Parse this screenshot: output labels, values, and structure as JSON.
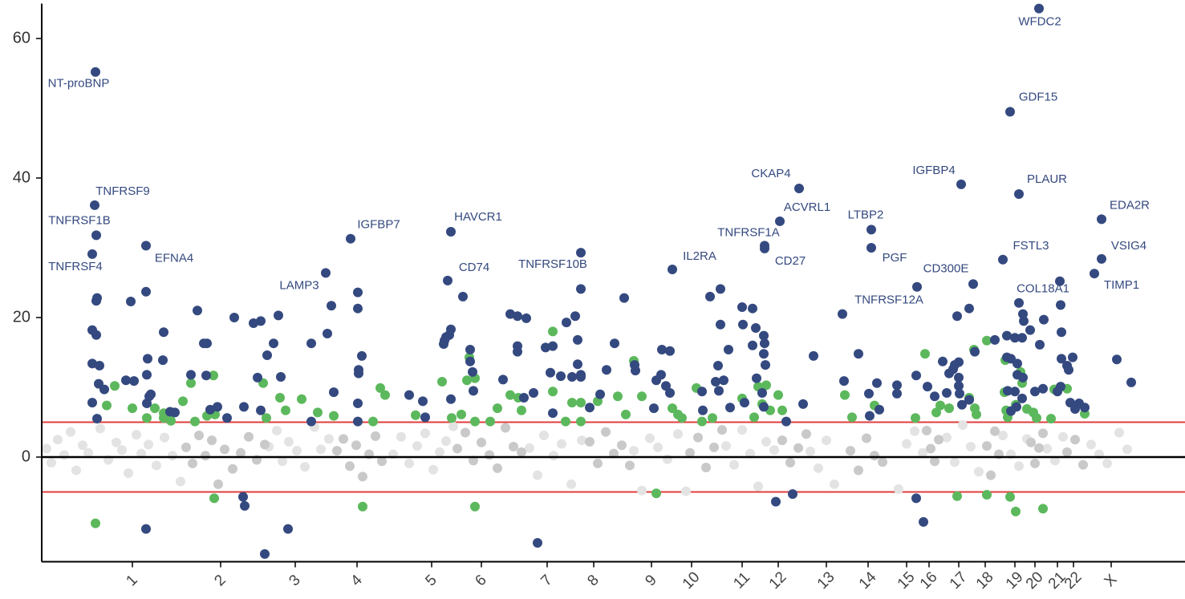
{
  "chart_data": {
    "type": "scatter",
    "xlim": [
      52,
      1477
    ],
    "ylim": [
      -15,
      65
    ],
    "yticks": [
      0,
      20,
      40,
      60
    ],
    "xticks": [
      {
        "value": 165,
        "label": "1"
      },
      {
        "value": 275,
        "label": "2"
      },
      {
        "value": 368,
        "label": "3"
      },
      {
        "value": 445,
        "label": "4"
      },
      {
        "value": 538,
        "label": "5"
      },
      {
        "value": 600,
        "label": "6"
      },
      {
        "value": 682,
        "label": "7"
      },
      {
        "value": 740,
        "label": "8"
      },
      {
        "value": 812,
        "label": "9"
      },
      {
        "value": 862,
        "label": "10"
      },
      {
        "value": 925,
        "label": "11"
      },
      {
        "value": 970,
        "label": "12"
      },
      {
        "value": 1030,
        "label": "13"
      },
      {
        "value": 1082,
        "label": "14"
      },
      {
        "value": 1130,
        "label": "15"
      },
      {
        "value": 1158,
        "label": "16"
      },
      {
        "value": 1195,
        "label": "17"
      },
      {
        "value": 1228,
        "label": "18"
      },
      {
        "value": 1265,
        "label": "19"
      },
      {
        "value": 1290,
        "label": "20"
      },
      {
        "value": 1318,
        "label": "21"
      },
      {
        "value": 1338,
        "label": "22"
      },
      {
        "value": 1385,
        "label": "X"
      }
    ],
    "threshold_lines": [
      5,
      -5
    ],
    "threshold_color": "#e03c3c",
    "zero_line": 0,
    "grid": false,
    "series": [
      {
        "color": "#e3e3e3",
        "x": [
          58,
          64,
          72,
          80,
          88,
          95,
          103,
          110,
          125,
          135,
          145,
          152,
          160,
          170,
          176,
          185,
          195,
          205,
          215,
          225,
          335,
          345,
          352,
          360,
          370,
          380,
          392,
          400,
          410,
          490,
          500,
          510,
          520,
          530,
          540,
          548,
          556,
          565,
          660,
          670,
          678,
          690,
          700,
          712,
          725,
          790,
          800,
          810,
          820,
          832,
          845,
          855,
          905,
          915,
          925,
          935,
          945,
          955,
          965,
          1010,
          1020,
          1030,
          1040,
          1120,
          1130,
          1140,
          1150,
          1180,
          1190,
          1200,
          1210,
          1220,
          1250,
          1260,
          1270,
          1280,
          1305,
          1315,
          1325,
          1360,
          1370,
          1380,
          1395,
          1405
        ],
        "values": [
          1.2,
          -0.8,
          2.5,
          0.3,
          3.6,
          -1.9,
          1.7,
          0.6,
          4.1,
          -0.4,
          2.1,
          1,
          -2.3,
          3.2,
          0.5,
          1.8,
          -1.2,
          2.8,
          0.2,
          -3.5,
          1.5,
          3.8,
          -0.6,
          2.2,
          0.9,
          -1.4,
          4.3,
          1.1,
          2.6,
          0.4,
          2.9,
          -0.9,
          1.6,
          3.4,
          -1.8,
          0.7,
          2.3,
          4.4,
          1.3,
          -2.6,
          3.1,
          0.2,
          1.9,
          -3.9,
          2.4,
          0.9,
          -4.8,
          2.7,
          1.4,
          -0.3,
          3.3,
          -4.9,
          1.6,
          -1.1,
          3.9,
          0.5,
          -4.2,
          2.2,
          1,
          0.8,
          -1.6,
          2.4,
          -3.9,
          -4.6,
          1.9,
          3.7,
          0.6,
          2.8,
          -0.7,
          4.6,
          1.5,
          -2.1,
          3.1,
          0.4,
          -1.3,
          2.6,
          1.2,
          -0.5,
          2.9,
          1.8,
          0.4,
          -0.9,
          3.5,
          1.1
        ]
      },
      {
        "color": "#c9c9c9",
        "x": [
          232,
          240,
          248,
          256,
          264,
          272,
          280,
          290,
          300,
          310,
          320,
          330,
          420,
          428,
          436,
          444,
          452,
          460,
          468,
          476,
          570,
          580,
          590,
          600,
          610,
          620,
          630,
          640,
          650,
          735,
          745,
          755,
          765,
          775,
          785,
          860,
          870,
          880,
          890,
          900,
          975,
          985,
          995,
          1005,
          1060,
          1070,
          1080,
          1090,
          1100,
          1155,
          1160,
          1165,
          1170,
          1230,
          1235,
          1240,
          1245,
          1285,
          1290,
          1295,
          1300,
          1330,
          1340,
          1350
        ],
        "values": [
          1.4,
          -0.9,
          3.1,
          0.2,
          2.4,
          -3.9,
          1.1,
          -1.7,
          0.6,
          2.9,
          -0.4,
          1.8,
          0.9,
          2.6,
          -1.3,
          1.7,
          -2.8,
          0.4,
          3,
          -0.6,
          1.2,
          3.5,
          -0.5,
          2.1,
          0.3,
          -1.6,
          4.2,
          1.5,
          0.7,
          2.2,
          -0.9,
          3.6,
          0.5,
          1.7,
          -1.2,
          0.6,
          2.8,
          -1.5,
          1.4,
          3.9,
          2.4,
          -0.8,
          1.3,
          3.3,
          0.9,
          -1.9,
          2.7,
          0.2,
          -0.7,
          3.8,
          1.2,
          -0.6,
          2.5,
          1.6,
          -2.6,
          3.7,
          0.4,
          2.1,
          -0.9,
          1.3,
          3.4,
          0.7,
          2.5,
          -1.1
        ]
      },
      {
        "color": "#5cb85c",
        "x": [
          119,
          133,
          143,
          165,
          183,
          193,
          204,
          204,
          213,
          228,
          238,
          243,
          258,
          266,
          267,
          268,
          328,
          332,
          349,
          356,
          376,
          396,
          416,
          452,
          465,
          474,
          480,
          518,
          551,
          563,
          575,
          582,
          585,
          592,
          592,
          592,
          611,
          620,
          636,
          646,
          650,
          689,
          689,
          705,
          713,
          724,
          724,
          745,
          770,
          780,
          790,
          800,
          818,
          838,
          845,
          850,
          868,
          875,
          888,
          925,
          940,
          945,
          950,
          955,
          960,
          970,
          975,
          1053,
          1062,
          1090,
          1141,
          1153,
          1167,
          1172,
          1183,
          1193,
          1208,
          1214,
          1215,
          1217,
          1230,
          1230,
          1252,
          1253,
          1254,
          1256,
          1259,
          1266,
          1266,
          1272,
          1274,
          1280,
          1288,
          1292,
          1300,
          1310,
          1314,
          1330,
          1352
        ],
        "values": [
          -9.5,
          7.4,
          10.2,
          7,
          5.6,
          7,
          6.3,
          5.6,
          5.2,
          8,
          10.6,
          5.1,
          5.9,
          11.7,
          -5.9,
          6.1,
          10.6,
          5.6,
          8.5,
          6.7,
          8.3,
          6.4,
          5.9,
          -7.1,
          5.1,
          9.9,
          8.9,
          6,
          10.8,
          5.6,
          6.1,
          11,
          14.3,
          -7.1,
          11.3,
          5.1,
          5.1,
          7,
          8.9,
          8.5,
          6.7,
          18,
          9.4,
          5.1,
          7.8,
          7.8,
          5.1,
          8,
          8.7,
          6.1,
          13.8,
          8.7,
          -5.2,
          7,
          6.1,
          5.6,
          9.9,
          5.1,
          5.6,
          8.4,
          5.7,
          10.1,
          7.6,
          10.3,
          6.7,
          8.9,
          6.7,
          8.9,
          5.7,
          7.4,
          5.6,
          14.8,
          6.4,
          7.4,
          7,
          -5.6,
          8.5,
          15.4,
          7,
          6.1,
          -5.4,
          16.7,
          9.3,
          13.9,
          6.7,
          5.7,
          -5.7,
          -7.8,
          7.5,
          12.2,
          10.6,
          6.9,
          6.4,
          5.6,
          -7.4,
          5.5,
          9.7,
          9.8,
          6.2
        ]
      },
      {
        "color": "#34497f",
        "x": [
          121,
          120,
          115,
          120,
          115,
          124,
          123,
          130,
          115,
          121,
          163,
          157,
          167,
          182,
          184,
          183,
          186,
          188,
          183,
          203,
          204,
          182,
          212,
          218,
          246,
          254,
          258,
          238,
          257,
          262,
          271,
          292,
          283,
          303,
          305,
          304,
          316,
          325,
          333,
          341,
          330,
          347,
          350,
          321,
          325,
          359,
          388,
          388,
          413,
          408,
          416,
          446,
          446,
          447,
          447,
          451,
          446,
          446,
          510,
          527,
          530,
          562,
          560,
          556,
          554,
          553,
          577,
          586,
          586,
          589,
          590,
          562,
          627,
          636,
          645,
          656,
          645,
          645,
          653,
          665,
          670,
          680,
          689,
          686,
          689,
          699,
          706,
          717,
          713,
          724,
          724,
          720,
          720,
          724,
          735,
          748,
          756,
          766,
          778,
          791,
          792,
          825,
          835,
          824,
          818,
          830,
          835,
          815,
          885,
          898,
          898,
          908,
          895,
          892,
          902,
          896,
          875,
          876,
          910,
          928,
          925,
          938,
          926,
          942,
          938,
          952,
          953,
          952,
          954,
          943,
          950,
          952,
          967,
          988,
          980,
          1001,
          1014,
          1052,
          1070,
          1093,
          1083,
          1096,
          1084,
          1118,
          1118,
          1142,
          1142,
          1151,
          1156,
          1165,
          1175,
          1183,
          1188,
          1190,
          1195,
          1195,
          1195,
          1196,
          1213,
          1193,
          1208,
          1215,
          1180,
          1199,
          1208,
          1270,
          1275,
          1276,
          1284,
          1296,
          1301,
          1274,
          1255,
          1265,
          1240,
          1255,
          1260,
          1268,
          1268,
          1275,
          1265,
          1256,
          1274,
          1290,
          1300,
          1267,
          1260,
          1322,
          1323,
          1323,
          1330,
          1332,
          1337,
          1322,
          1318,
          1334,
          1340,
          1345,
          1352,
          1392,
          1410
        ],
        "values": [
          22.8,
          22.4,
          18.2,
          17.5,
          13.4,
          13.1,
          10.5,
          9.7,
          7.8,
          5.5,
          22.3,
          11,
          10.9,
          23.7,
          14.1,
          11.8,
          8.7,
          9,
          7.7,
          13.9,
          17.9,
          -10.3,
          6.5,
          6.4,
          21,
          16.3,
          16.3,
          11.8,
          11.7,
          6.8,
          7.2,
          20,
          5.6,
          -5.7,
          -7,
          7.2,
          19.2,
          19.5,
          14.6,
          16.3,
          -13.9,
          20.3,
          11.5,
          11.4,
          6.7,
          -10.3,
          16.3,
          5.1,
          21.7,
          17.7,
          9.3,
          23.6,
          21.3,
          12.5,
          12,
          14.5,
          7.7,
          5.1,
          8.9,
          8,
          5.7,
          18.3,
          17.5,
          17.2,
          16.7,
          16.2,
          23,
          15.4,
          13.7,
          12.2,
          9.5,
          8.3,
          11.1,
          20.5,
          20.2,
          19.9,
          15.9,
          15.1,
          8.5,
          9.2,
          -12.3,
          15.7,
          15.9,
          12.1,
          6.3,
          11.6,
          19.3,
          20.2,
          11.5,
          11.5,
          24.1,
          16.8,
          13.3,
          11.8,
          7.1,
          9,
          12.5,
          16.3,
          22.8,
          13.2,
          12.4,
          15.4,
          15.2,
          11.8,
          11,
          10.2,
          9.2,
          7,
          23,
          24.1,
          19,
          15.4,
          13.1,
          10.8,
          11,
          9.5,
          9.4,
          6.7,
          7.1,
          7.8,
          21.5,
          21.3,
          19,
          18.5,
          16,
          17.4,
          16.3,
          14.8,
          13.2,
          11.3,
          9.2,
          7.2,
          -6.4,
          -5.3,
          5.1,
          7.6,
          14.5,
          10.9,
          14.8,
          10.6,
          9.1,
          6.8,
          5.9,
          10.3,
          9.1,
          11.7,
          -5.9,
          -9.3,
          10.1,
          8.7,
          13.7,
          12,
          12.6,
          13.2,
          13.6,
          11.4,
          10.2,
          9.1,
          24.8,
          20.2,
          21.3,
          15.1,
          9.2,
          7.5,
          8.2,
          22.1,
          20.5,
          19.5,
          18.2,
          16.1,
          19.7,
          17.1,
          17.4,
          17.1,
          16.8,
          14.3,
          14.1,
          13.4,
          11.8,
          11.4,
          9.4,
          9.5,
          8.4,
          9.4,
          9.8,
          7.2,
          6.6,
          21.8,
          17.9,
          14.1,
          13.1,
          12.5,
          14.3,
          10.1,
          9.4,
          7.8,
          6.9,
          7.7,
          7.1,
          14,
          10.7
        ]
      },
      {
        "color": "#34497f",
        "x": [
          119,
          118,
          120,
          115,
          182,
          406,
          437,
          562,
          558,
          724,
          838,
          996,
          972,
          953,
          953,
          1086,
          1086,
          1050,
          1143,
          1198,
          1295,
          1259,
          1270,
          1250,
          1321,
          1373,
          1373,
          1364
        ],
        "values": [
          55.2,
          36.1,
          31.8,
          29.1,
          30.3,
          26.4,
          31.3,
          32.3,
          25.3,
          29.3,
          26.9,
          38.5,
          33.8,
          30.3,
          29.9,
          32.6,
          30,
          20.5,
          24.4,
          39.1,
          64.3,
          49.5,
          37.7,
          28.3,
          25.2,
          34.1,
          28.4,
          26.3
        ],
        "point_labels": [
          "NT-proBNP",
          "TNFRSF9",
          "TNFRSF1B",
          "TNFRSF4",
          "EFNA4",
          "LAMP3",
          "IGFBP7",
          "HAVCR1",
          "CD74",
          "TNFRSF10B",
          "IL2RA",
          "CKAP4",
          "ACVRL1",
          "TNFRSF1A",
          "CD27",
          "LTBP2",
          "PGF",
          "TNFRSF12A",
          "CD300E",
          "IGFBP4",
          "WFDC2",
          "GDF15",
          "PLAUR",
          "FSTL3",
          "COL18A1",
          "EDA2R",
          "VSIG4",
          "TIMP1"
        ]
      }
    ]
  }
}
